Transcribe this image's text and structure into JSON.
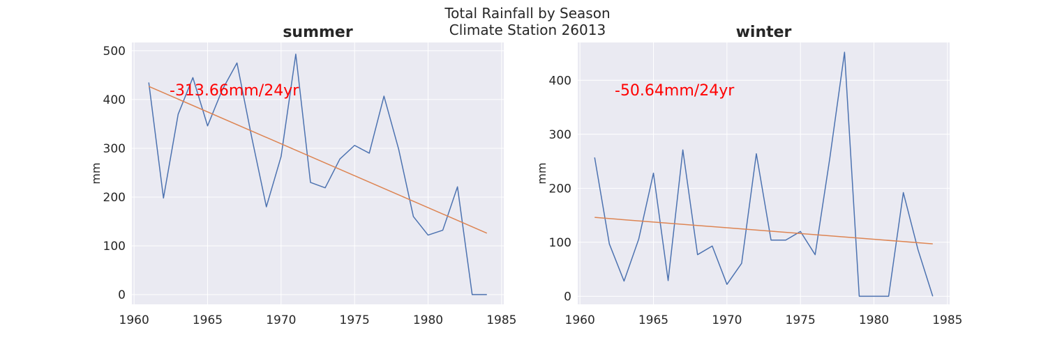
{
  "figure": {
    "title_line1": "Total Rainfall by Season",
    "title_line2": "Climate Station 26013"
  },
  "colors": {
    "plot_background": "#eaeaf2",
    "series": "#4c72b0",
    "trend": "#dd8452",
    "annotation": "#ff0000"
  },
  "chart_data": [
    {
      "type": "line",
      "title": "summer",
      "xlabel": "",
      "ylabel": "mm",
      "xlim": [
        1959.85,
        1985.15
      ],
      "ylim": [
        -20,
        517
      ],
      "xticks": [
        1960,
        1965,
        1970,
        1975,
        1980,
        1985
      ],
      "yticks": [
        0,
        100,
        200,
        300,
        400,
        500
      ],
      "grid": true,
      "x": [
        1961,
        1962,
        1963,
        1964,
        1965,
        1966,
        1967,
        1968,
        1969,
        1970,
        1971,
        1972,
        1973,
        1974,
        1975,
        1976,
        1977,
        1978,
        1979,
        1980,
        1981,
        1982,
        1983,
        1984
      ],
      "series": [
        {
          "values": [
            435,
            198,
            370,
            445,
            346,
            420,
            475,
            323,
            180,
            283,
            493,
            230,
            219,
            278,
            306,
            290,
            407,
            298,
            160,
            122,
            132,
            221,
            0,
            0
          ]
        }
      ],
      "trend": {
        "x": [
          1961,
          1984
        ],
        "y": [
          427,
          126
        ]
      },
      "annotation": "-313.66mm/24yr"
    },
    {
      "type": "line",
      "title": "winter",
      "xlabel": "",
      "ylabel": "mm",
      "xlim": [
        1959.85,
        1985.15
      ],
      "ylim": [
        -15,
        470
      ],
      "xticks": [
        1960,
        1965,
        1970,
        1975,
        1980,
        1985
      ],
      "yticks": [
        0,
        100,
        200,
        300,
        400
      ],
      "grid": true,
      "x": [
        1961,
        1962,
        1963,
        1964,
        1965,
        1966,
        1967,
        1968,
        1969,
        1970,
        1971,
        1972,
        1973,
        1974,
        1975,
        1976,
        1977,
        1978,
        1979,
        1980,
        1981,
        1982,
        1983,
        1984
      ],
      "series": [
        {
          "values": [
            257,
            97,
            28,
            106,
            228,
            29,
            271,
            77,
            93,
            22,
            61,
            264,
            104,
            104,
            120,
            77,
            256,
            452,
            0,
            0,
            0,
            192,
            86,
            0
          ]
        }
      ],
      "trend": {
        "x": [
          1961,
          1984
        ],
        "y": [
          146,
          97
        ]
      },
      "annotation": "-50.64mm/24yr"
    }
  ]
}
